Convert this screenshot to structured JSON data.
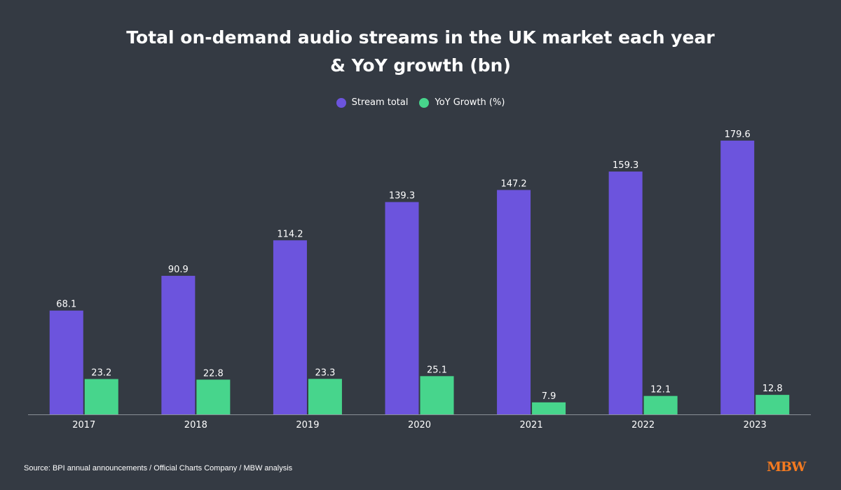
{
  "colors": {
    "background": "#343a43",
    "stream": "#6c54dd",
    "growth": "#47d58c",
    "axis": "#8a8f96",
    "logo": "#f47a20"
  },
  "title_lines": [
    "Total on-demand audio streams in the UK market each year",
    "& YoY growth (bn)"
  ],
  "legend": [
    {
      "label": "Stream total",
      "color": "#6c54dd"
    },
    {
      "label": "YoY Growth (%)",
      "color": "#47d58c"
    }
  ],
  "chart_data": {
    "type": "bar",
    "title": "Total on-demand audio streams in the UK market each year & YoY growth (bn)",
    "categories": [
      "2017",
      "2018",
      "2019",
      "2020",
      "2021",
      "2022",
      "2023"
    ],
    "series": [
      {
        "name": "Stream total",
        "values": [
          68.1,
          90.9,
          114.2,
          139.3,
          147.2,
          159.3,
          179.6
        ],
        "labels": [
          "68.1",
          "90.9",
          "114.2",
          "139.3",
          "147.2",
          "159.3",
          "179.6"
        ]
      },
      {
        "name": "YoY Growth (%)",
        "values": [
          23.2,
          22.8,
          23.3,
          25.1,
          7.9,
          12.1,
          12.8
        ],
        "labels": [
          "23.2",
          "22.8",
          "23.3",
          "25.1",
          "7.9",
          "12.1",
          "12.8"
        ]
      }
    ],
    "ylim": [
      0,
      180
    ],
    "grid": false,
    "legend_position": "top-center",
    "data_labels": true
  },
  "source_text": "Source: BPI annual announcements / Official Charts Company / MBW analysis",
  "logo_text": "MBW"
}
